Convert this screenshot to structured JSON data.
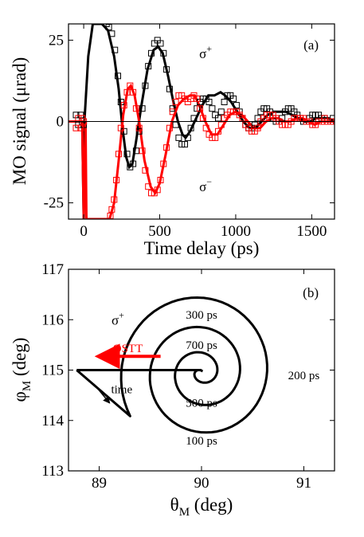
{
  "chart_data": [
    {
      "type": "scatter",
      "panel_label": "(a)",
      "xlabel": "Time delay (ps)",
      "ylabel": "MO signal (μrad)",
      "xlim": [
        -100,
        1650
      ],
      "ylim": [
        -30,
        30
      ],
      "xticks": [
        0,
        500,
        1000,
        1500
      ],
      "xtick_labels": [
        "0",
        "500",
        "1000",
        "1500"
      ],
      "yticks": [
        -25,
        0,
        25
      ],
      "ytick_labels": [
        "-25",
        "0",
        "25"
      ],
      "zero_line": true,
      "series": [
        {
          "name": "σ+",
          "color": "#000000",
          "marker": "open-square",
          "data": [
            [
              -50,
              2
            ],
            [
              -35,
              -1
            ],
            [
              -20,
              2
            ],
            [
              -10,
              0
            ],
            [
              0,
              -1
            ],
            [
              150,
              30
            ],
            [
              165,
              29
            ],
            [
              185,
              27
            ],
            [
              205,
              22
            ],
            [
              225,
              14
            ],
            [
              245,
              6
            ],
            [
              265,
              -3
            ],
            [
              285,
              -10
            ],
            [
              305,
              -14
            ],
            [
              325,
              -13
            ],
            [
              345,
              -9
            ],
            [
              365,
              -3
            ],
            [
              385,
              4
            ],
            [
              405,
              11
            ],
            [
              425,
              17
            ],
            [
              445,
              21
            ],
            [
              465,
              24
            ],
            [
              485,
              25
            ],
            [
              505,
              24
            ],
            [
              525,
              21
            ],
            [
              545,
              16
            ],
            [
              565,
              10
            ],
            [
              585,
              4
            ],
            [
              605,
              -1
            ],
            [
              625,
              -5
            ],
            [
              645,
              -7
            ],
            [
              665,
              -7
            ],
            [
              685,
              -5
            ],
            [
              705,
              -2
            ],
            [
              725,
              1
            ],
            [
              745,
              4
            ],
            [
              765,
              6
            ],
            [
              785,
              7
            ],
            [
              805,
              7
            ],
            [
              825,
              6
            ],
            [
              845,
              4
            ],
            [
              865,
              2
            ],
            [
              885,
              1
            ],
            [
              905,
              3
            ],
            [
              925,
              6
            ],
            [
              945,
              8
            ],
            [
              965,
              8
            ],
            [
              985,
              7
            ],
            [
              1005,
              5
            ],
            [
              1025,
              3
            ],
            [
              1045,
              1
            ],
            [
              1065,
              -1
            ],
            [
              1085,
              -2
            ],
            [
              1105,
              -2
            ],
            [
              1125,
              -1
            ],
            [
              1145,
              1
            ],
            [
              1165,
              3
            ],
            [
              1185,
              4
            ],
            [
              1205,
              4
            ],
            [
              1225,
              3
            ],
            [
              1245,
              1
            ],
            [
              1265,
              0
            ],
            [
              1285,
              0
            ],
            [
              1305,
              1
            ],
            [
              1325,
              3
            ],
            [
              1345,
              4
            ],
            [
              1365,
              4
            ],
            [
              1385,
              3
            ],
            [
              1405,
              2
            ],
            [
              1425,
              1
            ],
            [
              1445,
              0
            ],
            [
              1465,
              0
            ],
            [
              1485,
              1
            ],
            [
              1505,
              2
            ],
            [
              1525,
              2
            ],
            [
              1545,
              2
            ],
            [
              1565,
              1
            ],
            [
              1585,
              1
            ],
            [
              1605,
              0
            ],
            [
              1625,
              0
            ],
            [
              1640,
              1
            ]
          ]
        },
        {
          "name": "σ−",
          "color": "#ff0000",
          "marker": "open-square",
          "data": [
            [
              -50,
              -2
            ],
            [
              -35,
              1
            ],
            [
              -20,
              -2
            ],
            [
              -10,
              1
            ],
            [
              0,
              0
            ],
            [
              175,
              -29
            ],
            [
              185,
              -27
            ],
            [
              200,
              -24
            ],
            [
              215,
              -18
            ],
            [
              230,
              -10
            ],
            [
              245,
              -2
            ],
            [
              265,
              5
            ],
            [
              285,
              9
            ],
            [
              305,
              11
            ],
            [
              325,
              9
            ],
            [
              345,
              4
            ],
            [
              365,
              -2
            ],
            [
              385,
              -9
            ],
            [
              405,
              -15
            ],
            [
              425,
              -20
            ],
            [
              445,
              -22
            ],
            [
              465,
              -22
            ],
            [
              485,
              -21
            ],
            [
              505,
              -18
            ],
            [
              525,
              -13
            ],
            [
              545,
              -8
            ],
            [
              565,
              -2
            ],
            [
              585,
              3
            ],
            [
              605,
              6
            ],
            [
              625,
              8
            ],
            [
              645,
              8
            ],
            [
              665,
              7
            ],
            [
              685,
              6
            ],
            [
              705,
              7
            ],
            [
              725,
              8
            ],
            [
              745,
              7
            ],
            [
              765,
              4
            ],
            [
              785,
              1
            ],
            [
              805,
              -2
            ],
            [
              825,
              -4
            ],
            [
              845,
              -5
            ],
            [
              865,
              -5
            ],
            [
              885,
              -3
            ],
            [
              905,
              -1
            ],
            [
              925,
              1
            ],
            [
              945,
              2
            ],
            [
              965,
              3
            ],
            [
              985,
              3
            ],
            [
              1005,
              3
            ],
            [
              1025,
              2
            ],
            [
              1045,
              1
            ],
            [
              1065,
              -1
            ],
            [
              1085,
              -2
            ],
            [
              1105,
              -3
            ],
            [
              1125,
              -3
            ],
            [
              1145,
              -2
            ],
            [
              1165,
              0
            ],
            [
              1185,
              1
            ],
            [
              1205,
              2
            ],
            [
              1225,
              2
            ],
            [
              1245,
              2
            ],
            [
              1265,
              1
            ],
            [
              1285,
              0
            ],
            [
              1305,
              -1
            ],
            [
              1325,
              -1
            ],
            [
              1345,
              -1
            ],
            [
              1365,
              0
            ],
            [
              1385,
              1
            ],
            [
              1405,
              1
            ],
            [
              1425,
              1
            ],
            [
              1445,
              1
            ],
            [
              1465,
              0
            ],
            [
              1485,
              0
            ],
            [
              1505,
              -1
            ],
            [
              1525,
              -1
            ],
            [
              1545,
              0
            ],
            [
              1565,
              0
            ],
            [
              1585,
              1
            ],
            [
              1605,
              0
            ],
            [
              1625,
              0
            ],
            [
              1640,
              0
            ]
          ]
        }
      ],
      "fits": [
        {
          "color": "#000000",
          "data": [
            [
              -100,
              0
            ],
            [
              -10,
              0
            ],
            [
              0,
              -30
            ],
            [
              5,
              0
            ],
            [
              30,
              20
            ],
            [
              60,
              30
            ],
            [
              120,
              30
            ],
            [
              160,
              28
            ],
            [
              200,
              20
            ],
            [
              230,
              10
            ],
            [
              255,
              -2
            ],
            [
              280,
              -11
            ],
            [
              300,
              -14
            ],
            [
              320,
              -13
            ],
            [
              345,
              -6
            ],
            [
              380,
              5
            ],
            [
              420,
              16
            ],
            [
              460,
              22
            ],
            [
              490,
              23
            ],
            [
              520,
              21
            ],
            [
              555,
              14
            ],
            [
              590,
              6
            ],
            [
              620,
              0
            ],
            [
              650,
              -4
            ],
            [
              670,
              -5
            ],
            [
              700,
              -3
            ],
            [
              740,
              1
            ],
            [
              780,
              5
            ],
            [
              820,
              8
            ],
            [
              860,
              8
            ],
            [
              900,
              9
            ],
            [
              930,
              8
            ],
            [
              970,
              6
            ],
            [
              1010,
              3
            ],
            [
              1050,
              0
            ],
            [
              1090,
              -2
            ],
            [
              1130,
              -2
            ],
            [
              1170,
              0
            ],
            [
              1210,
              2
            ],
            [
              1250,
              3
            ],
            [
              1290,
              3
            ],
            [
              1330,
              3
            ],
            [
              1370,
              2
            ],
            [
              1410,
              1
            ],
            [
              1450,
              0
            ],
            [
              1490,
              0
            ],
            [
              1530,
              1
            ],
            [
              1570,
              1
            ],
            [
              1610,
              1
            ],
            [
              1650,
              0
            ]
          ]
        },
        {
          "color": "#ff0000",
          "data": [
            [
              -100,
              0
            ],
            [
              -10,
              0
            ],
            [
              0,
              -30
            ],
            [
              6,
              -15
            ],
            [
              12,
              0
            ],
            [
              18,
              -30
            ],
            [
              170,
              -30
            ],
            [
              200,
              -25
            ],
            [
              230,
              -12
            ],
            [
              260,
              2
            ],
            [
              290,
              10
            ],
            [
              310,
              11
            ],
            [
              335,
              8
            ],
            [
              365,
              0
            ],
            [
              400,
              -12
            ],
            [
              440,
              -20
            ],
            [
              470,
              -22
            ],
            [
              500,
              -19
            ],
            [
              540,
              -10
            ],
            [
              580,
              0
            ],
            [
              620,
              5
            ],
            [
              660,
              7
            ],
            [
              700,
              8
            ],
            [
              730,
              8
            ],
            [
              760,
              5
            ],
            [
              800,
              0
            ],
            [
              840,
              -4
            ],
            [
              880,
              -4
            ],
            [
              920,
              -1
            ],
            [
              960,
              2
            ],
            [
              1000,
              3
            ],
            [
              1040,
              2
            ],
            [
              1080,
              0
            ],
            [
              1120,
              -2
            ],
            [
              1160,
              -2
            ],
            [
              1200,
              0
            ],
            [
              1240,
              1
            ],
            [
              1280,
              1
            ],
            [
              1320,
              0
            ],
            [
              1360,
              0
            ],
            [
              1400,
              1
            ],
            [
              1440,
              1
            ],
            [
              1480,
              0
            ],
            [
              1520,
              -1
            ],
            [
              1560,
              0
            ],
            [
              1600,
              0
            ],
            [
              1650,
              0
            ]
          ]
        }
      ],
      "annotations": [
        {
          "text": "σ",
          "sup": "+",
          "x": 760,
          "y": 21
        },
        {
          "text": "σ",
          "sup": "−",
          "x": 760,
          "y": -20
        }
      ]
    },
    {
      "type": "line",
      "panel_label": "(b)",
      "xlabel": "θ",
      "xlabel_sub": "M",
      "xlabel_unit": " (deg)",
      "ylabel": "φ",
      "ylabel_sub": "M",
      "ylabel_unit": " (deg)",
      "xlim": [
        88.7,
        91.3
      ],
      "ylim": [
        113,
        117
      ],
      "xticks": [
        89,
        90,
        91
      ],
      "xtick_labels": [
        "89",
        "90",
        "91"
      ],
      "yticks": [
        113,
        114,
        115,
        116,
        117
      ],
      "ytick_labels": [
        "113",
        "114",
        "115",
        "116",
        "117"
      ],
      "trajectory": {
        "color": "#000000",
        "center": [
          90.0,
          114.95
        ],
        "start": [
          88.78,
          115.0
        ]
      },
      "labels": [
        {
          "text": "300 ps",
          "x": 90.0,
          "y": 116.1
        },
        {
          "text": "700 ps",
          "x": 90.0,
          "y": 115.5
        },
        {
          "text": "500 ps",
          "x": 90.0,
          "y": 114.35
        },
        {
          "text": "100 ps",
          "x": 90.0,
          "y": 113.6
        },
        {
          "text": "200 ps",
          "x": 91.0,
          "y": 114.9
        }
      ],
      "sigma_label": {
        "text": "σ",
        "sup": "+",
        "x": 89.12,
        "y": 116.0
      },
      "ostt": {
        "text": "OSTT",
        "color": "#ff0000",
        "x": 89.28,
        "y": 115.45,
        "arrow_from": [
          89.6,
          115.02
        ],
        "arrow_to": [
          88.97,
          115.02
        ]
      },
      "time_label": {
        "text": "time",
        "x": 89.22,
        "y": 114.62
      }
    }
  ]
}
